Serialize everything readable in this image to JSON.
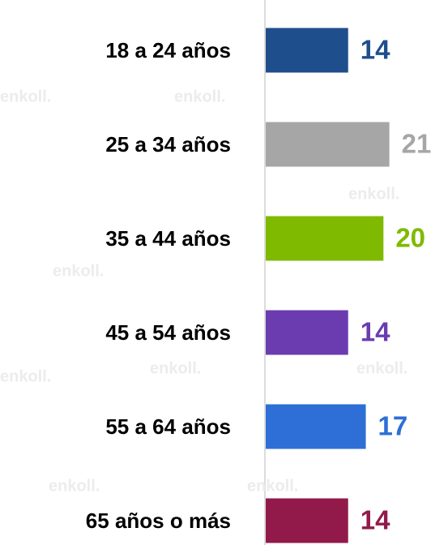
{
  "chart_data": {
    "type": "bar",
    "orientation": "horizontal",
    "categories": [
      "18 a 24 años",
      "25 a 34 años",
      "35 a 44 años",
      "45 a 54 años",
      "55 a 64 años",
      "65 años o más"
    ],
    "values": [
      14,
      21,
      20,
      14,
      17,
      14
    ],
    "colors": [
      "#1f4e8c",
      "#a6a6a6",
      "#7fba00",
      "#6a3cb0",
      "#2d6fd6",
      "#921a4a"
    ],
    "xlim": [
      0,
      30
    ],
    "watermark": "enkoll."
  }
}
